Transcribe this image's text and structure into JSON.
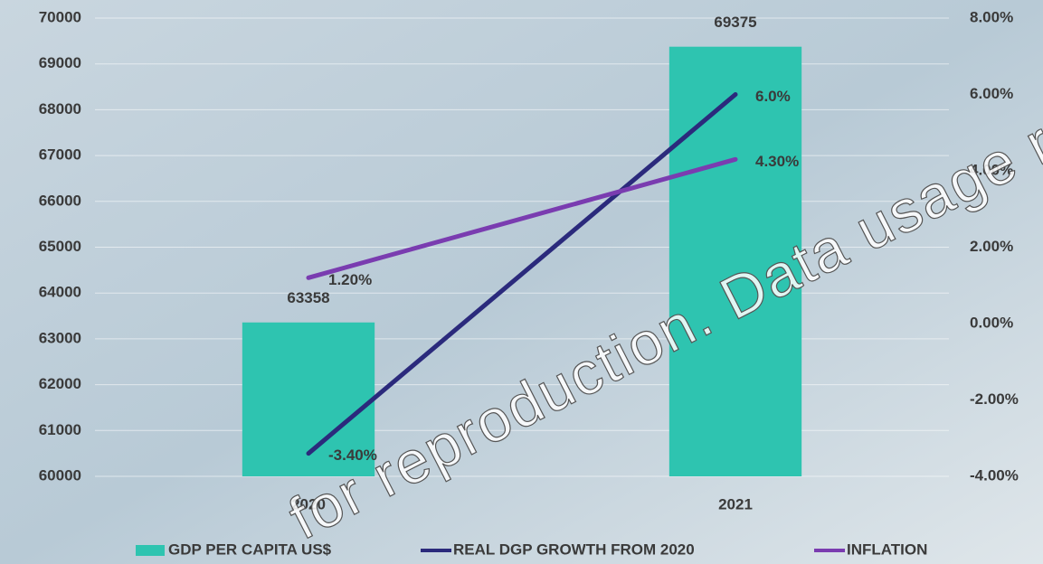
{
  "chart_data": {
    "type": "bar_line",
    "categories": [
      "2020",
      "2021"
    ],
    "series": [
      {
        "name": "GDP PER CAPITA US$",
        "type": "bar",
        "color": "#2ec4b0",
        "values": [
          63358,
          69375
        ]
      },
      {
        "name": "REAL DGP GROWTH FROM 2020",
        "type": "line",
        "axis": "y2",
        "color": "#2b2a7c",
        "values": [
          -3.4,
          6.0
        ],
        "value_labels": [
          "-3.40%",
          "6.0%"
        ]
      },
      {
        "name": "INFLATION",
        "type": "line",
        "axis": "y2",
        "color": "#7a3cb0",
        "values": [
          1.2,
          4.3
        ],
        "value_labels": [
          "1.20%",
          "4.30%"
        ]
      }
    ],
    "ylim": [
      60000,
      70000
    ],
    "yticks": [
      60000,
      61000,
      62000,
      63000,
      64000,
      65000,
      66000,
      67000,
      68000,
      69000,
      70000
    ],
    "y2lim": [
      -4,
      8
    ],
    "y2ticks": [
      {
        "value": -4,
        "label": "-4.00%"
      },
      {
        "value": -2,
        "label": "-2.00%"
      },
      {
        "value": 0,
        "label": "0.00%"
      },
      {
        "value": 2,
        "label": "2.00%"
      },
      {
        "value": 4,
        "label": "4.00%"
      },
      {
        "value": 6,
        "label": "6.00%"
      },
      {
        "value": 8,
        "label": "8.00%"
      }
    ],
    "grid": true,
    "legend": "bottom",
    "watermark": "for reproduction. Data usage re"
  }
}
